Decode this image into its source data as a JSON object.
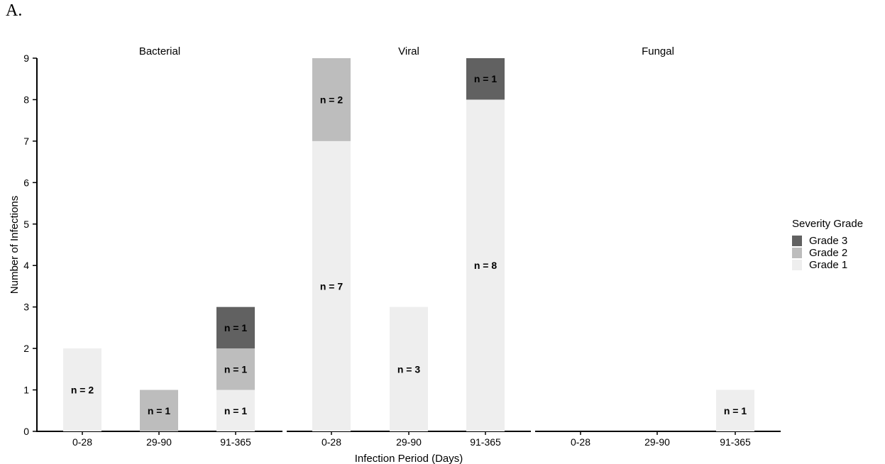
{
  "panel_label": "A.",
  "chart_data": {
    "type": "bar",
    "stacked": true,
    "facets": [
      "Bacterial",
      "Viral",
      "Fungal"
    ],
    "categories": [
      "0-28",
      "29-90",
      "91-365"
    ],
    "xlabel": "Infection Period (Days)",
    "ylabel": "Number of Infections",
    "ylim": [
      0,
      9
    ],
    "yticks": [
      0,
      1,
      2,
      3,
      4,
      5,
      6,
      7,
      8,
      9
    ],
    "grid": false,
    "legend": {
      "title": "Severity Grade",
      "position": "right",
      "entries": [
        {
          "label": "Grade 3",
          "color": "#616161"
        },
        {
          "label": "Grade 2",
          "color": "#bdbdbd"
        },
        {
          "label": "Grade 1",
          "color": "#eeeeee"
        }
      ]
    },
    "series": [
      {
        "name": "Grade 1",
        "color": "#eeeeee",
        "values": {
          "Bacterial": [
            2,
            0,
            1
          ],
          "Viral": [
            7,
            3,
            8
          ],
          "Fungal": [
            0,
            0,
            1
          ]
        }
      },
      {
        "name": "Grade 2",
        "color": "#bdbdbd",
        "values": {
          "Bacterial": [
            0,
            1,
            1
          ],
          "Viral": [
            2,
            0,
            0
          ],
          "Fungal": [
            0,
            0,
            0
          ]
        }
      },
      {
        "name": "Grade 3",
        "color": "#616161",
        "values": {
          "Bacterial": [
            0,
            0,
            1
          ],
          "Viral": [
            0,
            0,
            1
          ],
          "Fungal": [
            0,
            0,
            0
          ]
        }
      }
    ],
    "label_prefix": "n = "
  }
}
